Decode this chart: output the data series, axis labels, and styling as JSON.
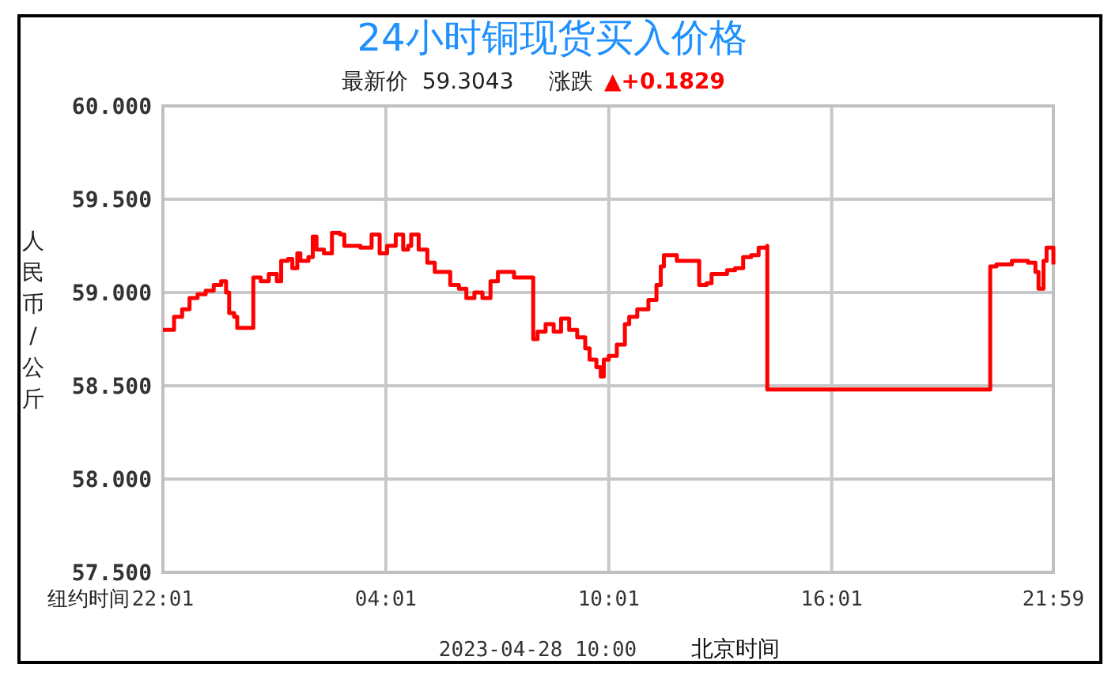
{
  "chart_data": {
    "type": "step",
    "title": "24小时铜现货买入价格",
    "subtitle": "最新价  59.3043     涨跌",
    "xlabel": "北京时间",
    "ylabel": "人民币/公斤",
    "annotations": [
      "▲+0.1829",
      "纽约时间",
      "2023-04-28 10:00"
    ],
    "xlim": [
      "2023-04-27T22:01",
      "2023-04-28T21:59"
    ],
    "ylim": [
      57.5,
      60
    ],
    "xticks": [
      {
        "value": "2023-04-27T22:01",
        "label": "22:01"
      },
      {
        "value": "2023-04-28T04:01",
        "label": "04:01"
      },
      {
        "value": "2023-04-28T10:01",
        "label": "10:01"
      },
      {
        "value": "2023-04-28T16:01",
        "label": "16:01"
      },
      {
        "value": "2023-04-28T21:59",
        "label": "21:59"
      }
    ],
    "yticks": [
      {
        "value": 57.5,
        "label": "57.500"
      },
      {
        "value": 58,
        "label": "58.000"
      },
      {
        "value": 58.5,
        "label": "58.500"
      },
      {
        "value": 59,
        "label": "59.000"
      },
      {
        "value": 59.5,
        "label": "59.500"
      },
      {
        "value": 60,
        "label": "60.000"
      }
    ],
    "grid": true,
    "series": [
      {
        "color": "#ff0000",
        "x": [
          "2023-04-27T22:01",
          "2023-04-27T22:19",
          "2023-04-27T22:32",
          "2023-04-27T22:44",
          "2023-04-27T22:57",
          "2023-04-27T23:10",
          "2023-04-27T23:23",
          "2023-04-27T23:35",
          "2023-04-27T23:43",
          "2023-04-27T23:48",
          "2023-04-27T23:56",
          "2023-04-28T00:01",
          "2023-04-28T00:27",
          "2023-04-28T00:27",
          "2023-04-28T00:39",
          "2023-04-28T00:52",
          "2023-04-28T01:05",
          "2023-04-28T01:12",
          "2023-04-28T01:23",
          "2023-04-28T01:30",
          "2023-04-28T01:38",
          "2023-04-28T01:43",
          "2023-04-28T01:56",
          "2023-04-28T02:03",
          "2023-04-28T02:09",
          "2023-04-28T02:21",
          "2023-04-28T02:34",
          "2023-04-28T02:47",
          "2023-04-28T02:54",
          "2023-04-28T03:20",
          "2023-04-28T03:38",
          "2023-04-28T03:51",
          "2023-04-28T04:03",
          "2023-04-28T04:17",
          "2023-04-28T04:29",
          "2023-04-28T04:37",
          "2023-04-28T04:42",
          "2023-04-28T04:54",
          "2023-04-28T05:08",
          "2023-04-28T05:20",
          "2023-04-28T05:33",
          "2023-04-28T05:45",
          "2023-04-28T05:59",
          "2023-04-28T06:11",
          "2023-04-28T06:24",
          "2023-04-28T06:37",
          "2023-04-28T06:50",
          "2023-04-28T07:02",
          "2023-04-28T07:15",
          "2023-04-28T07:28",
          "2023-04-28T07:48",
          "2023-04-28T07:59",
          "2023-04-28T07:59",
          "2023-04-28T08:06",
          "2023-04-28T08:19",
          "2023-04-28T08:32",
          "2023-04-28T08:44",
          "2023-04-28T08:57",
          "2023-04-28T09:10",
          "2023-04-28T09:23",
          "2023-04-28T09:30",
          "2023-04-28T09:41",
          "2023-04-28T09:48",
          "2023-04-28T09:53",
          "2023-04-28T10:01",
          "2023-04-28T10:14",
          "2023-04-28T10:27",
          "2023-04-28T10:34",
          "2023-04-28T10:47",
          "2023-04-28T11:05",
          "2023-04-28T11:18",
          "2023-04-28T11:25",
          "2023-04-28T11:30",
          "2023-04-28T11:51",
          "2023-04-28T12:21",
          "2023-04-28T12:27",
          "2023-04-28T12:39",
          "2023-04-28T12:47",
          "2023-04-28T13:12",
          "2023-04-28T13:25",
          "2023-04-28T13:38",
          "2023-04-28T13:51",
          "2023-04-28T14:03",
          "2023-04-28T14:17",
          "2023-04-28T14:17",
          "2023-04-28T20:17",
          "2023-04-28T20:17",
          "2023-04-28T20:27",
          "2023-04-28T20:52",
          "2023-04-28T21:18",
          "2023-04-28T21:30",
          "2023-04-28T21:35",
          "2023-04-28T21:43",
          "2023-04-28T21:48",
          "2023-04-28T21:59"
        ],
        "values": [
          58.8,
          58.87,
          58.91,
          58.97,
          58.99,
          59.01,
          59.04,
          59.06,
          59.0,
          58.89,
          58.87,
          58.81,
          58.81,
          59.08,
          59.06,
          59.1,
          59.06,
          59.17,
          59.18,
          59.13,
          59.21,
          59.17,
          59.19,
          59.3,
          59.23,
          59.21,
          59.32,
          59.31,
          59.25,
          59.24,
          59.31,
          59.21,
          59.25,
          59.31,
          59.23,
          59.25,
          59.31,
          59.23,
          59.16,
          59.11,
          59.11,
          59.04,
          59.02,
          58.97,
          59.0,
          58.97,
          59.06,
          59.11,
          59.11,
          59.08,
          59.08,
          59.08,
          58.75,
          58.79,
          58.83,
          58.79,
          58.86,
          58.8,
          58.76,
          58.7,
          58.64,
          58.6,
          58.55,
          58.64,
          58.66,
          58.72,
          58.83,
          58.87,
          58.91,
          58.96,
          59.04,
          59.14,
          59.2,
          59.17,
          59.17,
          59.04,
          59.05,
          59.1,
          59.12,
          59.13,
          59.19,
          59.2,
          59.24,
          59.25,
          58.48,
          58.48,
          59.14,
          59.15,
          59.17,
          59.16,
          59.11,
          59.02,
          59.17,
          59.24,
          59.15
        ]
      }
    ]
  }
}
